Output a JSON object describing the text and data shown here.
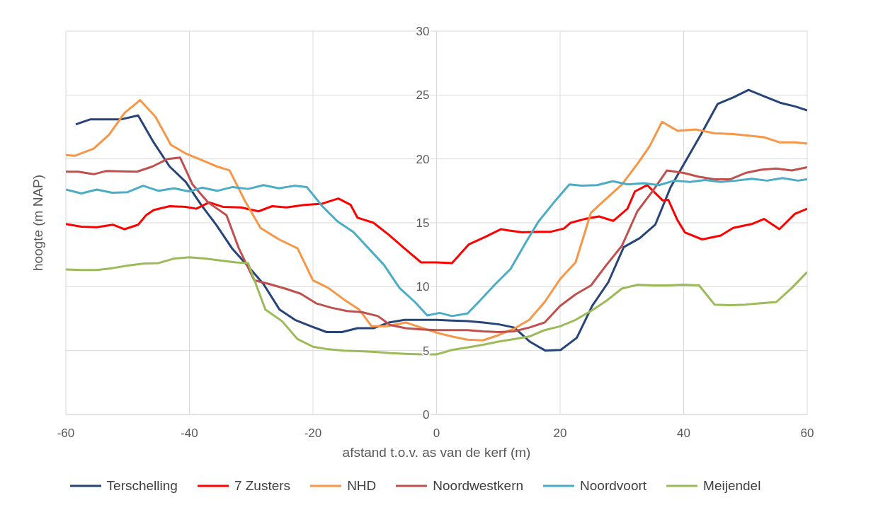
{
  "chart_data": {
    "type": "line",
    "xlabel": "afstand t.o.v. as van de kerf (m)",
    "ylabel": "hoogte (m NAP)",
    "xlim": [
      -60,
      60
    ],
    "xticks": [
      -60,
      -40,
      -20,
      0,
      20,
      40,
      60
    ],
    "ylim": [
      0,
      30
    ],
    "yticks": [
      0,
      5,
      10,
      15,
      20,
      25,
      30
    ],
    "grid": true,
    "legend": "bottom",
    "marker": "none",
    "line_style": "solid",
    "series": [
      {
        "name": "Terschelling",
        "color": "#264478",
        "x": [
          -58.4,
          -56,
          -53.5,
          -51,
          -48.3,
          -45.8,
          -43.2,
          -40.6,
          -38.1,
          -35.6,
          -33.1,
          -30.5,
          -28,
          -25.4,
          -22.9,
          -20.3,
          -17.8,
          -15.3,
          -12.8,
          -10.2,
          -7.7,
          -5.2,
          -2.6,
          0,
          2.5,
          5,
          7.6,
          10.1,
          12.6,
          15.1,
          17.6,
          20.1,
          22.7,
          25.2,
          27.8,
          30.3,
          32.9,
          35.4,
          37.9,
          40.4,
          42.9,
          45.5,
          48,
          50.5,
          53,
          55.6,
          58.1,
          60
        ],
        "values": [
          22.7,
          23.1,
          23.1,
          23.1,
          23.4,
          21.3,
          19.4,
          18.2,
          16.4,
          14.8,
          13.0,
          11.6,
          10.2,
          8.2,
          7.4,
          6.9,
          6.45,
          6.45,
          6.75,
          6.75,
          7.2,
          7.4,
          7.4,
          7.4,
          7.35,
          7.3,
          7.2,
          7.05,
          6.8,
          5.7,
          5.0,
          5.05,
          6.0,
          8.5,
          10.35,
          13.1,
          13.8,
          14.85,
          17.8,
          19.9,
          22.0,
          24.3,
          24.8,
          25.4,
          24.9,
          24.4,
          24.1,
          23.8
        ]
      },
      {
        "name": "7 Zusters",
        "color": "#ff0000",
        "x": [
          -60,
          -57.5,
          -55,
          -52.4,
          -50.5,
          -48.3,
          -47,
          -45.8,
          -43.2,
          -40.6,
          -38.9,
          -36.8,
          -34.6,
          -31.7,
          -28.8,
          -26.6,
          -24.3,
          -21.4,
          -18.5,
          -15.9,
          -13.9,
          -12.8,
          -10.2,
          -7.7,
          -5.2,
          -2.5,
          0,
          2.5,
          5.2,
          7.9,
          10.4,
          11.6,
          13.9,
          16.4,
          18.5,
          20.6,
          21.7,
          24,
          26.3,
          28.6,
          30.9,
          32.1,
          34.1,
          36.6,
          37.5,
          39,
          40.2,
          43,
          46,
          48,
          51,
          53,
          55.5,
          58,
          60
        ],
        "values": [
          14.9,
          14.7,
          14.65,
          14.85,
          14.5,
          14.85,
          15.6,
          16.0,
          16.3,
          16.25,
          16.1,
          16.6,
          16.25,
          16.2,
          15.9,
          16.3,
          16.2,
          16.4,
          16.5,
          16.9,
          16.4,
          15.4,
          15.0,
          14.05,
          13.0,
          11.9,
          11.9,
          11.85,
          13.3,
          13.9,
          14.5,
          14.4,
          14.25,
          14.3,
          14.3,
          14.55,
          15.0,
          15.3,
          15.5,
          15.15,
          16.1,
          17.45,
          17.95,
          16.75,
          16.8,
          15.2,
          14.25,
          13.7,
          14.0,
          14.6,
          14.9,
          15.3,
          14.5,
          15.7,
          16.1
        ]
      },
      {
        "name": "NHD",
        "color": "#f79646",
        "x": [
          -60,
          -58.5,
          -55.5,
          -53,
          -50.5,
          -48,
          -45.5,
          -43,
          -40.5,
          -38,
          -35.5,
          -33.5,
          -31,
          -28.5,
          -25.5,
          -22.5,
          -20,
          -17.5,
          -15,
          -12.5,
          -10.5,
          -8,
          -5,
          -2.5,
          0,
          2.5,
          5,
          7.5,
          10,
          12.5,
          15,
          17.5,
          20,
          22.5,
          25,
          27.5,
          30,
          32.5,
          34.5,
          36.5,
          39,
          42,
          45,
          48,
          53,
          55.5,
          58,
          60
        ],
        "values": [
          20.3,
          20.25,
          20.8,
          21.9,
          23.6,
          24.6,
          23.3,
          21.1,
          20.4,
          19.9,
          19.4,
          19.1,
          16.7,
          14.6,
          13.7,
          13.0,
          10.5,
          9.9,
          9.0,
          8.2,
          6.9,
          6.9,
          7.2,
          6.8,
          6.4,
          6.1,
          5.85,
          5.8,
          6.2,
          6.7,
          7.4,
          8.8,
          10.6,
          11.9,
          15.8,
          16.9,
          18.0,
          19.6,
          21.0,
          22.9,
          22.2,
          22.3,
          22.0,
          21.95,
          21.7,
          21.3,
          21.3,
          21.2
        ]
      },
      {
        "name": "Noordwestkern",
        "color": "#c0504d",
        "x": [
          -60,
          -58,
          -55.5,
          -53.5,
          -48.5,
          -46,
          -43.5,
          -41.5,
          -39.5,
          -37,
          -35.5,
          -34,
          -32,
          -29.5,
          -27,
          -24.5,
          -22,
          -19.5,
          -17,
          -14.5,
          -12,
          -9.5,
          -7.5,
          -5,
          -2.5,
          0,
          2.5,
          5,
          7.5,
          10,
          12.5,
          15,
          17.5,
          20,
          22.5,
          25,
          27.5,
          30,
          32.5,
          35,
          37.3,
          40,
          42.5,
          45,
          47.5,
          50,
          52.5,
          55,
          57.5,
          60
        ],
        "values": [
          19.0,
          19.0,
          18.8,
          19.05,
          19.0,
          19.4,
          20.0,
          20.1,
          18.0,
          16.6,
          16.1,
          15.6,
          13.0,
          10.5,
          10.2,
          9.85,
          9.45,
          8.7,
          8.35,
          8.1,
          8.0,
          7.7,
          7.0,
          6.75,
          6.65,
          6.6,
          6.6,
          6.6,
          6.5,
          6.45,
          6.5,
          6.8,
          7.2,
          8.5,
          9.4,
          10.1,
          11.7,
          13.2,
          15.9,
          17.5,
          19.1,
          18.9,
          18.6,
          18.4,
          18.4,
          18.9,
          19.15,
          19.25,
          19.1,
          19.35
        ]
      },
      {
        "name": "Noordvoort",
        "color": "#4bacc6",
        "x": [
          -60,
          -57.5,
          -55,
          -52.5,
          -50,
          -47.5,
          -45,
          -42.5,
          -40,
          -38,
          -35.5,
          -33,
          -30.5,
          -28,
          -25.5,
          -23,
          -21,
          -18.5,
          -16,
          -13.5,
          -11,
          -8.5,
          -6,
          -3.5,
          -1.5,
          0.5,
          2.5,
          5,
          7,
          9.5,
          12,
          14.5,
          16.5,
          19,
          21.5,
          23.5,
          26,
          28.5,
          31,
          33.5,
          36,
          38.5,
          41,
          43.5,
          46,
          48.5,
          51,
          53.5,
          56,
          58.5,
          60
        ],
        "values": [
          17.6,
          17.3,
          17.6,
          17.35,
          17.4,
          17.9,
          17.5,
          17.7,
          17.45,
          17.75,
          17.5,
          17.8,
          17.65,
          17.95,
          17.7,
          17.9,
          17.8,
          16.3,
          15.1,
          14.3,
          13.0,
          11.7,
          9.9,
          8.8,
          7.75,
          7.95,
          7.7,
          7.9,
          8.9,
          10.2,
          11.4,
          13.5,
          15.1,
          16.6,
          18.0,
          17.9,
          17.95,
          18.25,
          18.0,
          18.1,
          17.95,
          18.3,
          18.2,
          18.35,
          18.2,
          18.3,
          18.45,
          18.3,
          18.5,
          18.3,
          18.4
        ]
      },
      {
        "name": "Meijendel",
        "color": "#9bbb59",
        "x": [
          -60,
          -57.5,
          -55,
          -52.5,
          -50,
          -47.5,
          -45,
          -42.5,
          -40,
          -37.5,
          -35,
          -32.5,
          -30.5,
          -27.7,
          -25,
          -22.5,
          -20,
          -17.5,
          -15,
          -12.5,
          -10,
          -7.5,
          -5,
          -2.5,
          0,
          2.5,
          5,
          7.5,
          10,
          12.5,
          15,
          17.5,
          20,
          22.5,
          25,
          27.5,
          30,
          32.5,
          35,
          37.5,
          40,
          42.5,
          45,
          47.5,
          50,
          52.5,
          55,
          57.5,
          60
        ],
        "values": [
          11.35,
          11.3,
          11.3,
          11.45,
          11.65,
          11.8,
          11.85,
          12.2,
          12.3,
          12.2,
          12.05,
          11.9,
          11.85,
          8.2,
          7.3,
          5.9,
          5.3,
          5.1,
          5.0,
          4.95,
          4.9,
          4.8,
          4.75,
          4.7,
          4.7,
          5.05,
          5.25,
          5.45,
          5.7,
          5.9,
          6.1,
          6.6,
          6.9,
          7.4,
          8.1,
          8.9,
          9.85,
          10.15,
          10.1,
          10.1,
          10.15,
          10.1,
          8.6,
          8.55,
          8.6,
          8.7,
          8.8,
          9.9,
          11.15
        ]
      }
    ]
  }
}
